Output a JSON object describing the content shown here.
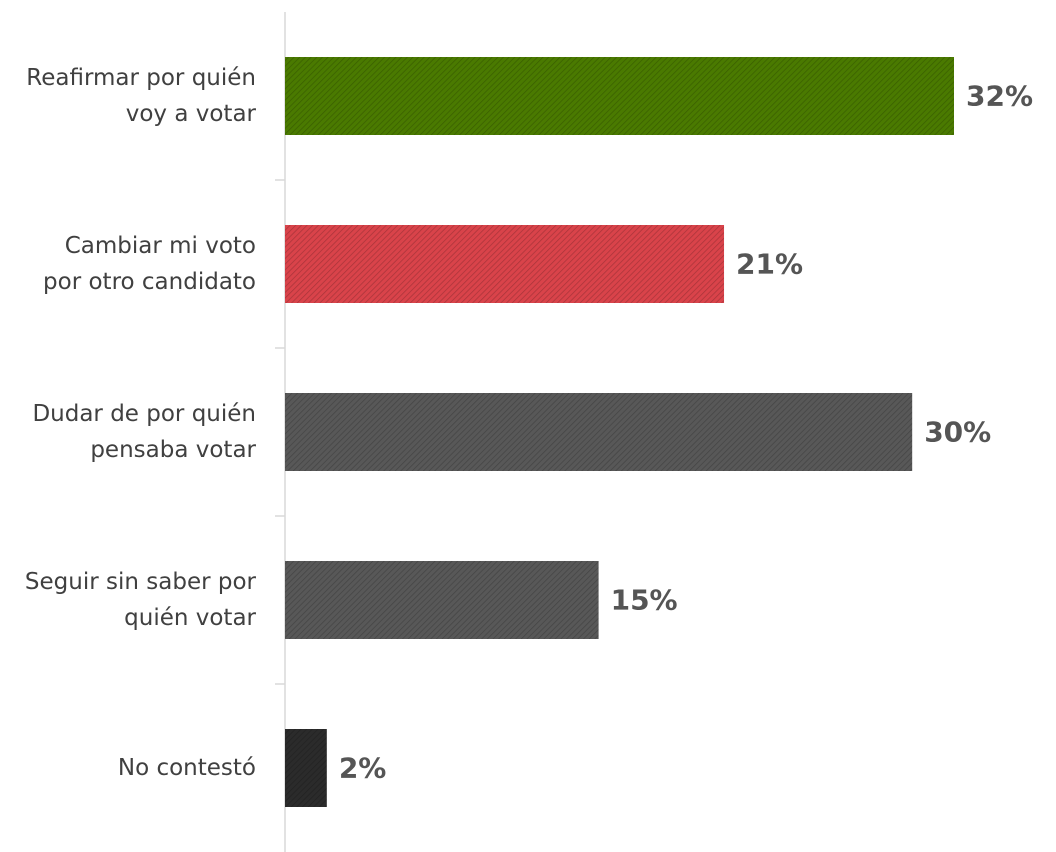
{
  "chart_data": {
    "type": "bar",
    "orientation": "horizontal",
    "categories": [
      "Reafirmar por quién voy a votar",
      "Cambiar mi voto por otro candidato",
      "Dudar de por quién pensaba votar",
      "Seguir sin saber por quién votar",
      "No contestó"
    ],
    "values": [
      32,
      21,
      30,
      15,
      2
    ],
    "value_labels": [
      "32%",
      "21%",
      "30%",
      "15%",
      "2%"
    ],
    "colors": [
      "#4a7a00",
      "#d9434a",
      "#585858",
      "#585858",
      "#2b2b2b"
    ],
    "pattern": "hatched"
  }
}
